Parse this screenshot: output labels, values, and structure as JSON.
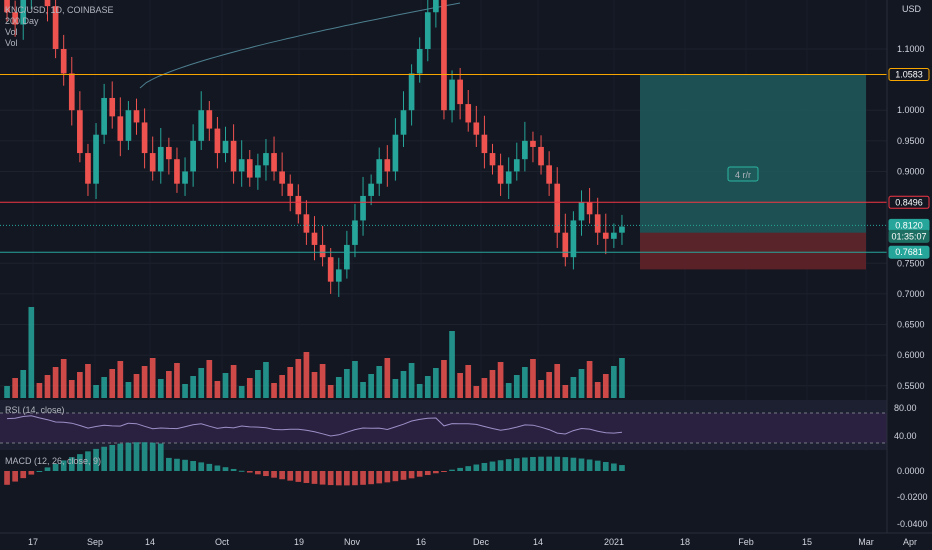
{
  "header": {
    "symbol_line": "KNC/USD, 1D, COINBASE",
    "ma_label": "200 Day",
    "vol_label_1": "Vol",
    "vol_label_2": "Vol"
  },
  "currency": "USD",
  "rsi_label": "RSI (14, close)",
  "macd_label": "MACD (12, 26, close, 9)",
  "rr_label": "4 r/r",
  "colors": {
    "background": "#131722",
    "up": "#26a69a",
    "down": "#ef5350",
    "level_orange": "#f7a600",
    "level_red": "#f23645",
    "teal_zone": "#1f5a5a",
    "red_zone": "#5e2328",
    "rsi_band": "#2a2140",
    "ma_line": "#4d7f8f"
  },
  "chart_data": {
    "type": "candlestick",
    "price_axis": {
      "ticks": [
        "1.1000",
        "1.0000",
        "0.9500",
        "0.9000",
        "0.7500",
        "0.7000",
        "0.6500",
        "0.6000",
        "0.5500"
      ],
      "range": [
        0.53,
        1.18
      ]
    },
    "x_ticks": [
      "17",
      "Sep",
      "14",
      "Oct",
      "19",
      "Nov",
      "16",
      "Dec",
      "14",
      "2021",
      "18",
      "Feb",
      "15",
      "Mar",
      "Apr"
    ],
    "price_tags": [
      {
        "value": "1.0583",
        "style": "orange"
      },
      {
        "value": "0.8496",
        "style": "red"
      },
      {
        "value": "0.8120",
        "style": "teal"
      },
      {
        "value": "01:35:07",
        "style": "teal-dark"
      },
      {
        "value": "0.7681",
        "style": "teal"
      }
    ],
    "levels": {
      "target": 1.0583,
      "resistance": 0.8496,
      "last": 0.812,
      "entry": 0.7681,
      "stop": 0.74
    },
    "closes": [
      1.16,
      1.14,
      1.18,
      1.22,
      1.2,
      1.17,
      1.1,
      1.06,
      1.0,
      0.93,
      0.88,
      0.96,
      1.02,
      0.99,
      0.95,
      1.0,
      0.98,
      0.93,
      0.9,
      0.94,
      0.92,
      0.88,
      0.9,
      0.95,
      1.0,
      0.97,
      0.93,
      0.95,
      0.9,
      0.92,
      0.89,
      0.91,
      0.93,
      0.9,
      0.88,
      0.86,
      0.83,
      0.8,
      0.78,
      0.76,
      0.72,
      0.74,
      0.78,
      0.82,
      0.86,
      0.88,
      0.92,
      0.9,
      0.96,
      1.0,
      1.06,
      1.1,
      1.16,
      1.2,
      1.0,
      1.05,
      1.01,
      0.98,
      0.96,
      0.93,
      0.91,
      0.88,
      0.9,
      0.92,
      0.95,
      0.94,
      0.91,
      0.88,
      0.8,
      0.76,
      0.82,
      0.85,
      0.83,
      0.8,
      0.79,
      0.8,
      0.81
    ],
    "rsi": {
      "upper": "80.00",
      "lower": "40.00"
    },
    "macd_ticks": [
      "0.0000",
      "-0.0200",
      "-0.0400"
    ]
  }
}
